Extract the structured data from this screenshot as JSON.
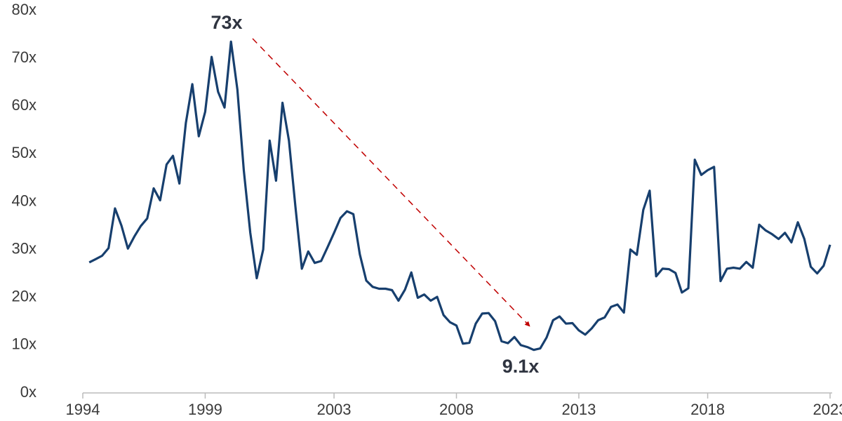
{
  "chart_data": {
    "type": "line",
    "categories": [
      "1994",
      null,
      null,
      null,
      null,
      null,
      null,
      null,
      null,
      null,
      null,
      null,
      null,
      null,
      null,
      null,
      null,
      null,
      null,
      "1999",
      null,
      null,
      null,
      null,
      null,
      null,
      null,
      null,
      null,
      null,
      null,
      null,
      null,
      null,
      null,
      null,
      null,
      null,
      null,
      "2003",
      null,
      null,
      null,
      null,
      null,
      null,
      null,
      null,
      null,
      null,
      null,
      null,
      null,
      null,
      null,
      null,
      null,
      null,
      "2008",
      null,
      null,
      null,
      null,
      null,
      null,
      null,
      null,
      null,
      null,
      null,
      null,
      null,
      null,
      null,
      null,
      null,
      null,
      "2013",
      null,
      null,
      null,
      null,
      null,
      null,
      null,
      null,
      null,
      null,
      null,
      null,
      null,
      null,
      null,
      null,
      null,
      null,
      null,
      "2018",
      null,
      null,
      null,
      null,
      null,
      null,
      null,
      null,
      null,
      null,
      null,
      null,
      null,
      null,
      null,
      null,
      null,
      null,
      "2023"
    ],
    "series": [
      {
        "color": "#173f6e",
        "values": [
          null,
          27.3,
          28,
          28.7,
          30.3,
          38.6,
          35,
          30.2,
          32.7,
          34.9,
          36.5,
          42.8,
          40.3,
          47.8,
          49.6,
          43.8,
          56.5,
          64.6,
          53.7,
          58.8,
          70.3,
          63,
          59.7,
          73.5,
          63.5,
          46.5,
          33.5,
          24,
          30,
          52.8,
          44.4,
          60.7,
          52.8,
          39,
          26,
          29.6,
          27.2,
          27.6,
          30.5,
          33.5,
          36.6,
          38,
          37.4,
          29,
          23.5,
          22.2,
          21.8,
          21.8,
          21.5,
          19.3,
          21.6,
          25.2,
          19.9,
          20.6,
          19.3,
          20.1,
          16.3,
          14.8,
          14.1,
          10.3,
          10.5,
          14.5,
          16.6,
          16.7,
          15,
          10.8,
          10.4,
          11.7,
          10,
          9.6,
          9,
          9.3,
          11.6,
          15.2,
          16,
          14.5,
          14.6,
          13.1,
          12.2,
          13.5,
          15.2,
          15.8,
          18,
          18.5,
          16.8,
          30,
          28.9,
          38.3,
          42.3,
          24.4,
          26,
          25.9,
          25.1,
          21,
          21.9,
          48.8,
          45.6,
          46.6,
          47.3,
          23.4,
          26,
          26.2,
          26,
          27.4,
          26.2,
          35.2,
          34,
          33.2,
          32.2,
          33.5,
          31.5,
          35.7,
          32.2,
          26.4,
          25,
          26.6,
          31
        ]
      }
    ],
    "ylim": [
      0,
      80
    ],
    "yticks": [
      {
        "value": 0,
        "label": "0x"
      },
      {
        "value": 10,
        "label": "10x"
      },
      {
        "value": 20,
        "label": "20x"
      },
      {
        "value": 30,
        "label": "30x"
      },
      {
        "value": 40,
        "label": "40x"
      },
      {
        "value": 50,
        "label": "50x"
      },
      {
        "value": 60,
        "label": "60x"
      },
      {
        "value": 70,
        "label": "70x"
      },
      {
        "value": 80,
        "label": "80x"
      }
    ],
    "grid": false,
    "annotations": [
      "73x",
      "9.1x"
    ]
  }
}
